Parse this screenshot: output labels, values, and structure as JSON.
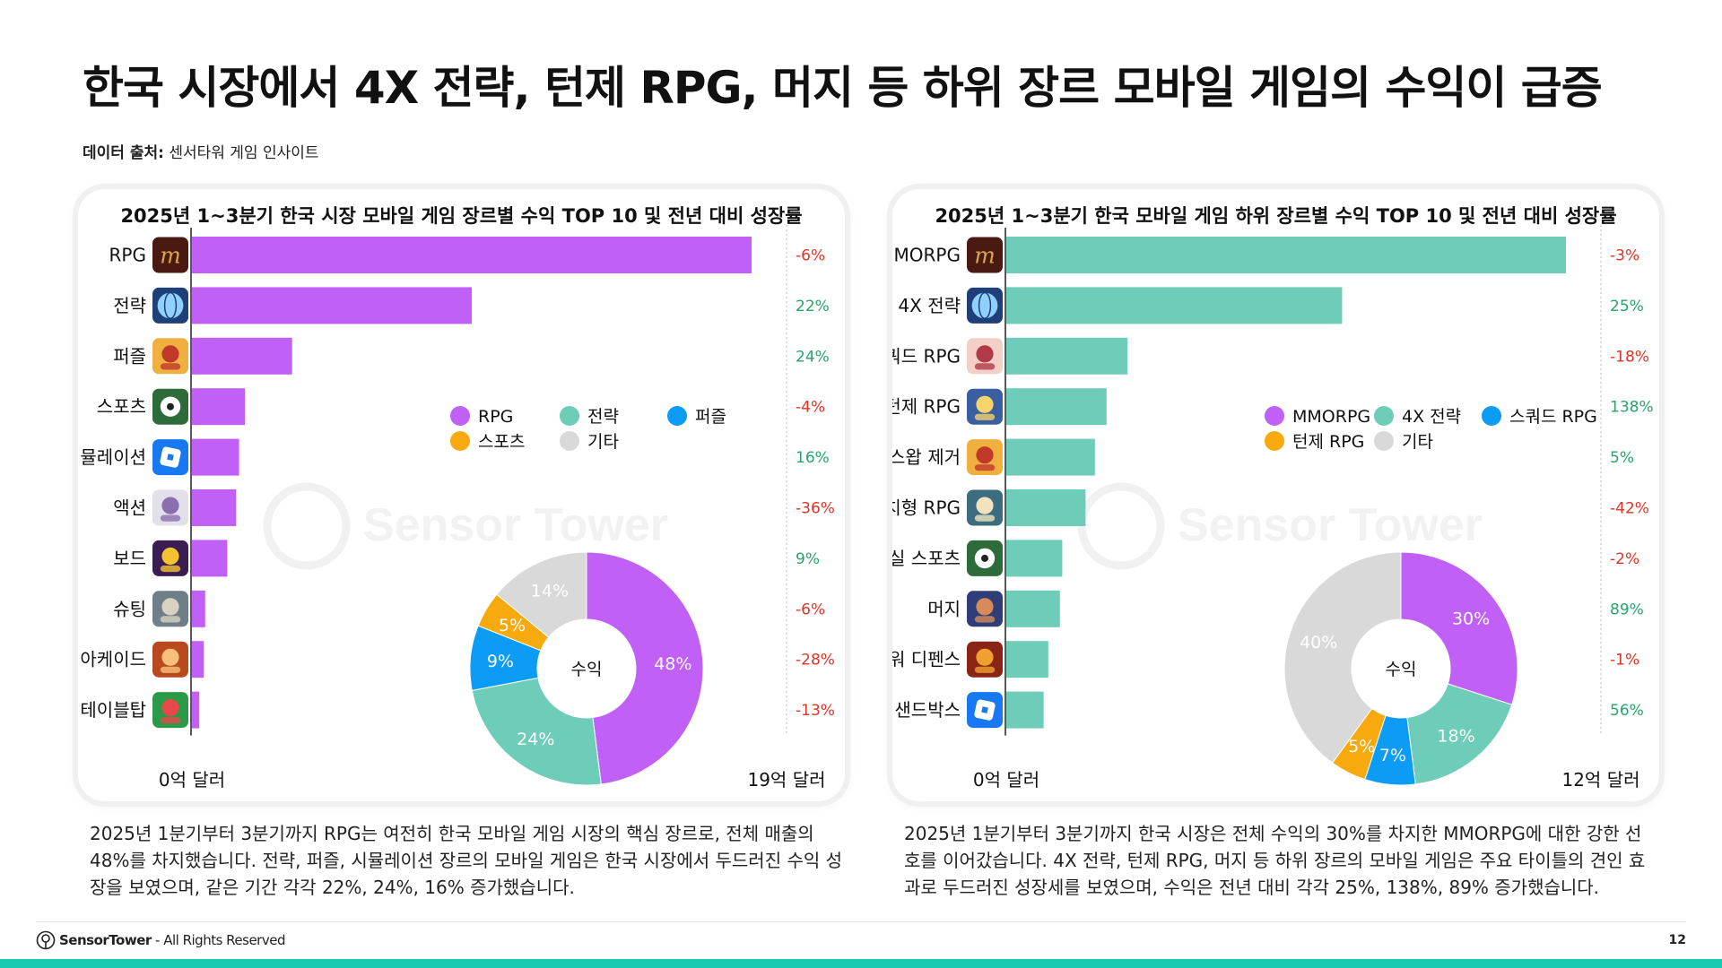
{
  "title": "한국 시장에서 4X 전략, 턴제 RPG, 머지 등 하위 장르 모바일 게임의 수익이 급증",
  "source": {
    "label": "데이터 출처:",
    "value": "센서타워 게임 인사이트"
  },
  "watermark": "Sensor Tower",
  "colors": {
    "purple": "#c060f6",
    "teal": "#6dcdb8",
    "blue": "#0d9cf5",
    "orange": "#f7a90e",
    "gray": "#d9d9d9",
    "positive": "#27a56a",
    "negative": "#e03326",
    "footer_bar": "#17c9b0"
  },
  "chart_data": [
    {
      "type": "bar",
      "title": "2025년 1~3분기 한국 시장 모바일 게임 장르별 수익 TOP 10 및 전년 대비 성장률",
      "categories": [
        "RPG",
        "전략",
        "퍼즐",
        "스포츠",
        "시뮬레이션",
        "액션",
        "보드",
        "슈팅",
        "아케이드",
        "테이블탑"
      ],
      "icons": [
        "lineage-m-icon",
        "globe-strategy-icon",
        "royal-match-icon",
        "football-icon",
        "roblox-icon",
        "anime-action-icon",
        "poker-icon",
        "pubg-soldier-icon",
        "cookie-run-icon",
        "puzzle-character-icon"
      ],
      "values": [
        19.0,
        9.5,
        3.4,
        1.8,
        1.6,
        1.5,
        1.2,
        0.45,
        0.4,
        0.25
      ],
      "growth": [
        "-6%",
        "22%",
        "24%",
        "-4%",
        "16%",
        "-36%",
        "9%",
        "-6%",
        "-28%",
        "-13%"
      ],
      "axis_min_label": "0억 달러",
      "axis_max_label": "19억 달러",
      "xlim": [
        0,
        19
      ],
      "bar_color": "#c060f6",
      "donut": {
        "center_label": "수익",
        "slices": [
          {
            "name": "RPG",
            "value": 48,
            "label": "48%",
            "color": "#c060f6"
          },
          {
            "name": "전략",
            "value": 24,
            "label": "24%",
            "color": "#6dcdb8"
          },
          {
            "name": "퍼즐",
            "value": 9,
            "label": "9%",
            "color": "#0d9cf5"
          },
          {
            "name": "스포츠",
            "value": 5,
            "label": "5%",
            "color": "#f7a90e"
          },
          {
            "name": "기타",
            "value": 14,
            "label": "14%",
            "color": "#d9d9d9"
          }
        ]
      }
    },
    {
      "type": "bar",
      "title": "2025년 1~3분기 한국 모바일 게임 하위 장르별 수익 TOP 10 및 전년 대비 성장률",
      "categories": [
        "MMORPG",
        "4X 전략",
        "스쿼드 RPG",
        "턴제 RPG",
        "스왑 제거",
        "방치형 RPG",
        "현실 스포츠",
        "머지",
        "타워 디펜스",
        "샌드박스"
      ],
      "icons": [
        "lineage-m-icon",
        "globe-strategy-icon",
        "anime-girl-icon",
        "netmarble-rpg-icon",
        "royal-match-icon",
        "idle-rpg-icon",
        "football-icon",
        "merge-character-icon",
        "tower-defense-icon",
        "roblox-icon"
      ],
      "values": [
        12.0,
        7.2,
        2.6,
        2.15,
        1.9,
        1.7,
        1.2,
        1.15,
        0.9,
        0.8
      ],
      "growth": [
        "-3%",
        "25%",
        "-18%",
        "138%",
        "5%",
        "-42%",
        "-2%",
        "89%",
        "-1%",
        "56%"
      ],
      "axis_min_label": "0억 달러",
      "axis_max_label": "12억 달러",
      "xlim": [
        0,
        12
      ],
      "bar_color": "#6dcdb8",
      "donut": {
        "center_label": "수익",
        "slices": [
          {
            "name": "MMORPG",
            "value": 30,
            "label": "30%",
            "color": "#c060f6"
          },
          {
            "name": "4X 전략",
            "value": 18,
            "label": "18%",
            "color": "#6dcdb8"
          },
          {
            "name": "스쿼드 RPG",
            "value": 7,
            "label": "7%",
            "color": "#0d9cf5"
          },
          {
            "name": "턴제 RPG",
            "value": 5,
            "label": "5%",
            "color": "#f7a90e"
          },
          {
            "name": "기타",
            "value": 40,
            "label": "40%",
            "color": "#d9d9d9"
          }
        ]
      }
    }
  ],
  "descriptions": [
    "2025년 1분기부터 3분기까지 RPG는 여전히 한국 모바일 게임 시장의 핵심 장르로, 전체 매출의 48%를 차지했습니다. 전략, 퍼즐, 시뮬레이션 장르의 모바일 게임은 한국 시장에서 두드러진 수익 성장을 보였으며, 같은 기간 각각 22%, 24%, 16% 증가했습니다.",
    "2025년 1분기부터 3분기까지 한국 시장은 전체 수익의 30%를 차지한 MMORPG에 대한 강한 선호를 이어갔습니다. 4X 전략, 턴제 RPG, 머지 등 하위 장르의 모바일 게임은 주요 타이틀의 견인 효과로 두드러진 성장세를 보였으며, 수익은 전년 대비 각각 25%, 138%, 89% 증가했습니다."
  ],
  "footer": {
    "brand": "SensorTower",
    "rights": " - All Rights Reserved",
    "page": "12"
  }
}
